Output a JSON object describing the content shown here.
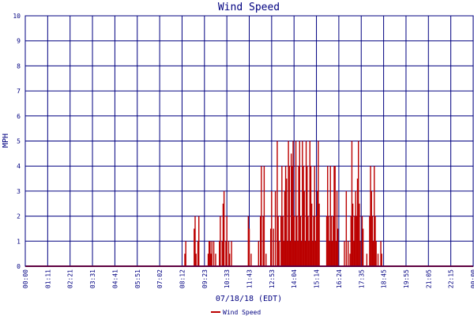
{
  "chart_data": {
    "type": "bar",
    "title": "Wind Speed",
    "xlabel": "07/18/18 (EDT)",
    "ylabel": "MPH",
    "ylim": [
      0,
      10
    ],
    "yticks": [
      "0",
      "1",
      "2",
      "3",
      "4",
      "5",
      "6",
      "7",
      "8",
      "9",
      "10"
    ],
    "xticks": [
      "00:00",
      "01:11",
      "02:21",
      "03:31",
      "04:41",
      "05:51",
      "07:02",
      "08:12",
      "09:23",
      "10:33",
      "11:43",
      "12:53",
      "14:04",
      "15:14",
      "16:24",
      "17:35",
      "18:45",
      "19:55",
      "21:05",
      "22:15",
      "00:00"
    ],
    "x_unit": "hours",
    "xlim": [
      0,
      24
    ],
    "grid": true,
    "legend_position": "bottom-center",
    "series": [
      {
        "name": "Wind Speed",
        "color": "#bb0000",
        "points": [
          [
            8.55,
            0.5
          ],
          [
            8.6,
            1.0
          ],
          [
            9.05,
            1.5
          ],
          [
            9.1,
            2.0
          ],
          [
            9.15,
            0.5
          ],
          [
            9.25,
            1.0
          ],
          [
            9.3,
            2.0
          ],
          [
            9.8,
            0.5
          ],
          [
            9.85,
            1.0
          ],
          [
            9.9,
            1.0
          ],
          [
            9.95,
            0.5
          ],
          [
            10.0,
            1.0
          ],
          [
            10.1,
            1.0
          ],
          [
            10.2,
            0.5
          ],
          [
            10.4,
            1.0
          ],
          [
            10.45,
            2.0
          ],
          [
            10.55,
            1.0
          ],
          [
            10.6,
            2.5
          ],
          [
            10.65,
            3.0
          ],
          [
            10.75,
            1.0
          ],
          [
            10.8,
            2.0
          ],
          [
            10.9,
            1.0
          ],
          [
            10.95,
            0.5
          ],
          [
            11.05,
            1.0
          ],
          [
            11.95,
            2.0
          ],
          [
            12.0,
            1.5
          ],
          [
            12.1,
            0.5
          ],
          [
            12.5,
            1.0
          ],
          [
            12.6,
            2.0
          ],
          [
            12.65,
            4.0
          ],
          [
            12.75,
            2.0
          ],
          [
            12.8,
            4.0
          ],
          [
            12.9,
            0.5
          ],
          [
            13.15,
            1.5
          ],
          [
            13.2,
            3.0
          ],
          [
            13.3,
            1.5
          ],
          [
            13.4,
            3.0
          ],
          [
            13.5,
            5.0
          ],
          [
            13.55,
            2.0
          ],
          [
            13.6,
            1.0
          ],
          [
            13.7,
            2.0
          ],
          [
            13.75,
            4.0
          ],
          [
            13.8,
            2.0
          ],
          [
            13.85,
            1.0
          ],
          [
            13.9,
            3.0
          ],
          [
            13.95,
            4.0
          ],
          [
            14.0,
            3.5
          ],
          [
            14.05,
            1.0
          ],
          [
            14.1,
            5.0
          ],
          [
            14.15,
            4.0
          ],
          [
            14.2,
            1.0
          ],
          [
            14.25,
            4.5
          ],
          [
            14.3,
            4.0
          ],
          [
            14.35,
            5.0
          ],
          [
            14.4,
            2.0
          ],
          [
            14.45,
            1.0
          ],
          [
            14.5,
            5.0
          ],
          [
            14.55,
            2.0
          ],
          [
            14.6,
            1.0
          ],
          [
            14.65,
            4.0
          ],
          [
            14.7,
            5.0
          ],
          [
            14.75,
            2.0
          ],
          [
            14.8,
            1.0
          ],
          [
            14.85,
            5.0
          ],
          [
            14.9,
            4.0
          ],
          [
            14.95,
            3.0
          ],
          [
            15.0,
            1.0
          ],
          [
            15.05,
            5.0
          ],
          [
            15.1,
            4.0
          ],
          [
            15.15,
            2.0
          ],
          [
            15.2,
            1.0
          ],
          [
            15.25,
            5.0
          ],
          [
            15.3,
            4.0
          ],
          [
            15.35,
            2.5
          ],
          [
            15.4,
            1.0
          ],
          [
            15.45,
            2.0
          ],
          [
            15.5,
            4.0
          ],
          [
            15.55,
            1.0
          ],
          [
            15.6,
            2.0
          ],
          [
            15.65,
            3.0
          ],
          [
            15.7,
            5.0
          ],
          [
            15.75,
            2.5
          ],
          [
            16.15,
            2.0
          ],
          [
            16.2,
            4.0
          ],
          [
            16.25,
            2.0
          ],
          [
            16.3,
            1.0
          ],
          [
            16.35,
            4.0
          ],
          [
            16.4,
            2.0
          ],
          [
            16.45,
            1.0
          ],
          [
            16.5,
            2.0
          ],
          [
            16.55,
            4.0
          ],
          [
            16.6,
            4.0
          ],
          [
            16.65,
            1.0
          ],
          [
            16.7,
            3.0
          ],
          [
            16.75,
            1.5
          ],
          [
            17.1,
            1.0
          ],
          [
            17.2,
            3.0
          ],
          [
            17.3,
            1.0
          ],
          [
            17.4,
            0.5
          ],
          [
            17.45,
            2.0
          ],
          [
            17.5,
            5.0
          ],
          [
            17.55,
            2.5
          ],
          [
            17.6,
            1.0
          ],
          [
            17.65,
            2.0
          ],
          [
            17.7,
            3.0
          ],
          [
            17.75,
            2.0
          ],
          [
            17.8,
            3.5
          ],
          [
            17.85,
            5.0
          ],
          [
            17.9,
            2.5
          ],
          [
            17.95,
            1.0
          ],
          [
            18.05,
            2.0
          ],
          [
            18.1,
            1.5
          ],
          [
            18.3,
            0.5
          ],
          [
            18.45,
            2.0
          ],
          [
            18.5,
            4.0
          ],
          [
            18.55,
            3.0
          ],
          [
            18.6,
            2.0
          ],
          [
            18.65,
            1.0
          ],
          [
            18.7,
            4.0
          ],
          [
            18.75,
            2.0
          ],
          [
            18.8,
            1.0
          ],
          [
            18.9,
            0.5
          ],
          [
            19.05,
            1.0
          ],
          [
            19.1,
            0.5
          ]
        ]
      }
    ]
  }
}
